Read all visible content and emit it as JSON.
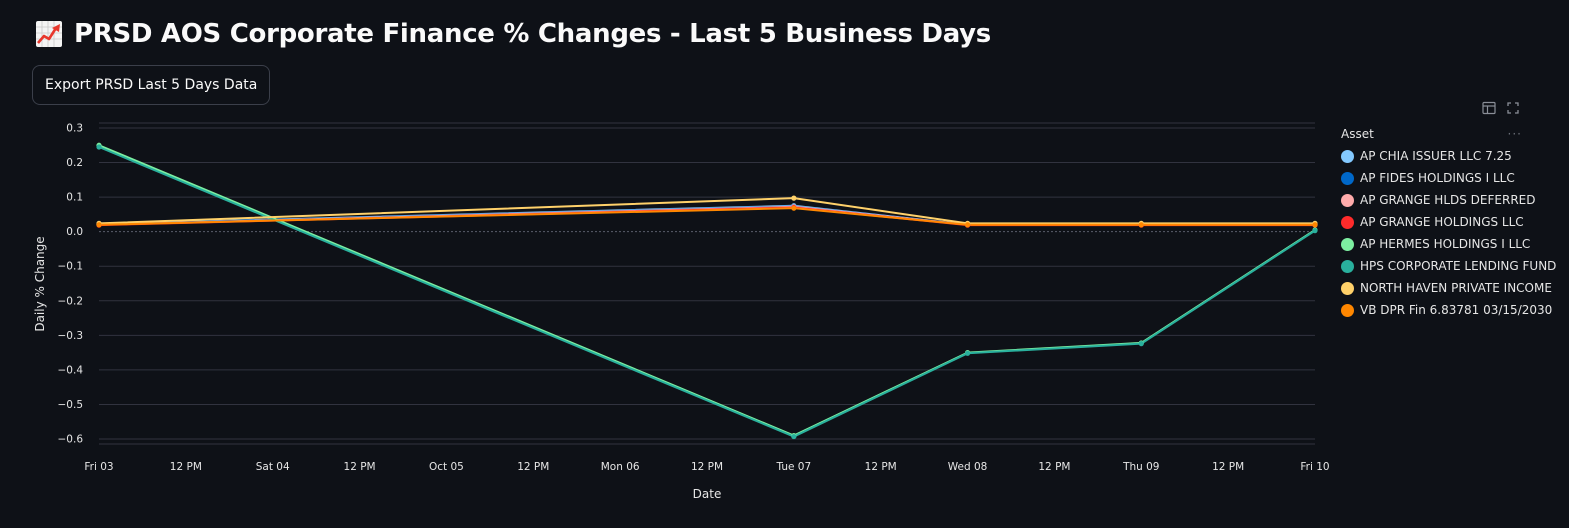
{
  "page": {
    "title_icon": "chart-increasing-icon",
    "title": "PRSD AOS Corporate Finance % Changes - Last 5 Business Days",
    "export_label": "Export PRSD Last 5 Days Data"
  },
  "toolbar": {
    "table_icon": "table-icon",
    "fullscreen_icon": "fullscreen-icon"
  },
  "chart_data": {
    "type": "line",
    "title": "",
    "xlabel": "Date",
    "ylabel": "Daily % Change",
    "ylim": [
      -0.62,
      0.31
    ],
    "yticks": [
      0.3,
      0.2,
      0.1,
      0.0,
      -0.1,
      -0.2,
      -0.3,
      -0.4,
      -0.5,
      -0.6
    ],
    "ytick_labels": [
      "0.3",
      "0.2",
      "0.1",
      "0.0",
      "−0.1",
      "−0.2",
      "−0.3",
      "−0.4",
      "−0.5",
      "−0.6"
    ],
    "xlim": [
      0,
      7
    ],
    "xticks": [
      0,
      0.5,
      1,
      1.5,
      2,
      2.5,
      3,
      3.5,
      4,
      4.5,
      5,
      5.5,
      6,
      6.5,
      7
    ],
    "xtick_labels": [
      "Fri 03",
      "12 PM",
      "Sat 04",
      "12 PM",
      "Oct 05",
      "12 PM",
      "Mon 06",
      "12 PM",
      "Tue 07",
      "12 PM",
      "Wed 08",
      "12 PM",
      "Thu 09",
      "12 PM",
      "Fri 10"
    ],
    "x": [
      0,
      4,
      5,
      6,
      7
    ],
    "x_dates": [
      "Fri 03",
      "Tue 07",
      "Wed 08",
      "Thu 09",
      "Fri 10"
    ],
    "grid": true,
    "legend_title": "Asset",
    "legend_more": "···",
    "legend_position": "right",
    "series": [
      {
        "name": "AP CHIA ISSUER LLC 7.25",
        "color": "#83c9ff",
        "values": [
          0.022,
          0.075,
          0.02,
          0.02,
          0.02
        ]
      },
      {
        "name": "AP FIDES HOLDINGS I LLC",
        "color": "#0068c9",
        "values": [
          0.021,
          0.073,
          0.02,
          0.02,
          0.02
        ]
      },
      {
        "name": "AP GRANGE HLDS DEFERRED",
        "color": "#ffabab",
        "values": [
          0.02,
          0.072,
          0.02,
          0.02,
          0.02
        ]
      },
      {
        "name": "AP GRANGE HOLDINGS LLC",
        "color": "#ff2b2b",
        "values": [
          0.019,
          0.07,
          0.019,
          0.019,
          0.019
        ]
      },
      {
        "name": "AP HERMES HOLDINGS I LLC",
        "color": "#7defa1",
        "values": [
          0.25,
          -0.59,
          -0.35,
          -0.322,
          0.005
        ]
      },
      {
        "name": "HPS CORPORATE LENDING FUND",
        "color": "#29b09d",
        "values": [
          0.245,
          -0.593,
          -0.352,
          -0.324,
          0.003
        ]
      },
      {
        "name": "NORTH HAVEN PRIVATE INCOME",
        "color": "#ffd16a",
        "values": [
          0.024,
          0.097,
          0.024,
          0.024,
          0.024
        ]
      },
      {
        "name": "VB DPR Fin 6.83781 03/15/2030",
        "color": "#ff8700",
        "values": [
          0.02,
          0.068,
          0.02,
          0.02,
          0.02
        ]
      }
    ],
    "gridline_color": "#31333f",
    "zero_line_color": "#5a5e6b"
  }
}
